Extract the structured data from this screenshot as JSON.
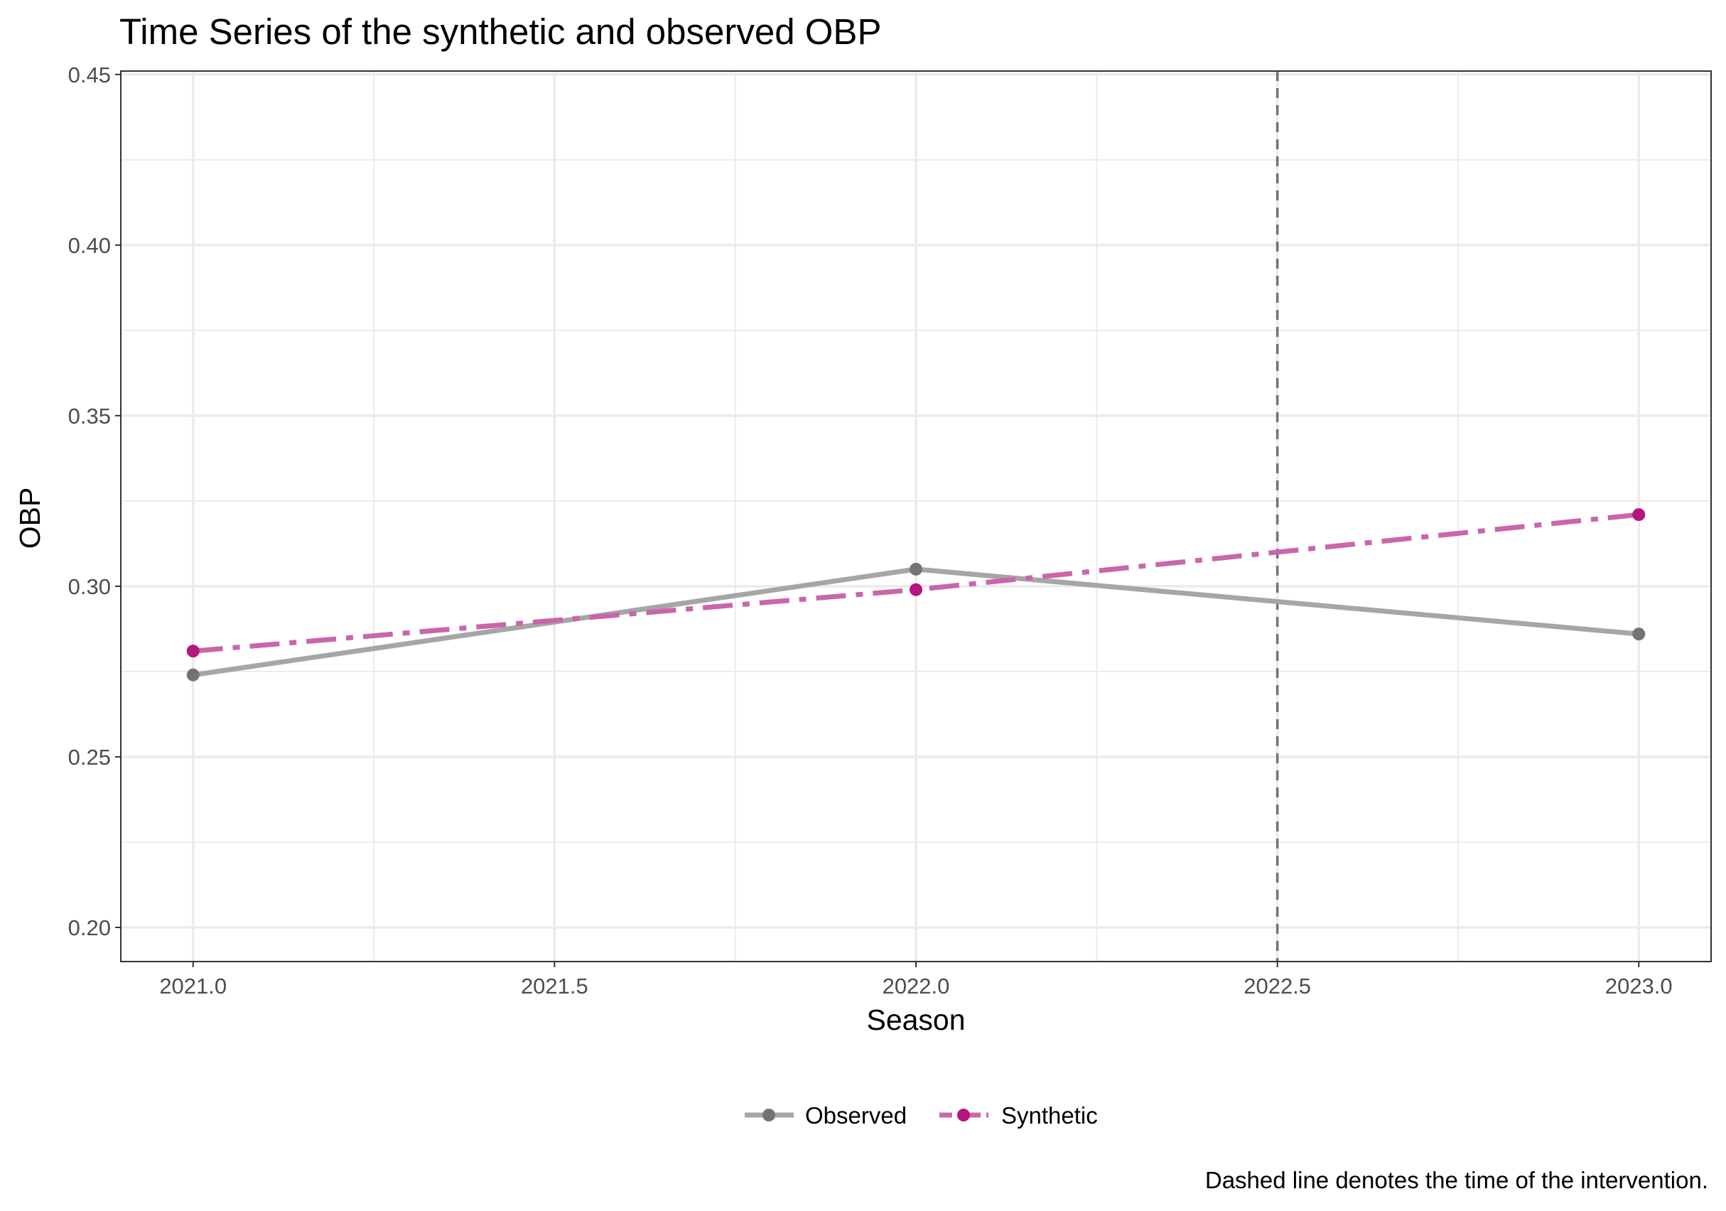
{
  "chart_data": {
    "type": "line",
    "title": "Time Series of the synthetic and observed OBP",
    "xlabel": "Season",
    "ylabel": "OBP",
    "x": [
      2021.0,
      2022.0,
      2023.0
    ],
    "xlim": [
      2020.9,
      2023.1
    ],
    "ylim": [
      0.19,
      0.451
    ],
    "x_ticks": [
      2021.0,
      2021.5,
      2022.0,
      2022.5,
      2023.0
    ],
    "x_tick_labels": [
      "2021.0",
      "2021.5",
      "2022.0",
      "2022.5",
      "2023.0"
    ],
    "y_ticks": [
      0.2,
      0.25,
      0.3,
      0.35,
      0.4,
      0.45
    ],
    "y_tick_labels": [
      "0.20",
      "0.25",
      "0.30",
      "0.35",
      "0.40",
      "0.45"
    ],
    "grid": true,
    "series": [
      {
        "name": "Observed",
        "values": [
          0.274,
          0.305,
          0.286
        ],
        "color": "#a6a6a6",
        "point_color": "#737373",
        "linestyle": "solid"
      },
      {
        "name": "Synthetic",
        "values": [
          0.281,
          0.299,
          0.321
        ],
        "color": "#c966ab",
        "point_color": "#b5157f",
        "linestyle": "dashdot"
      }
    ],
    "intervention": {
      "x": 2022.5,
      "color": "#737373",
      "linestyle": "dashed"
    },
    "legend_position": "bottom",
    "caption": "Dashed line denotes the time of the intervention."
  }
}
